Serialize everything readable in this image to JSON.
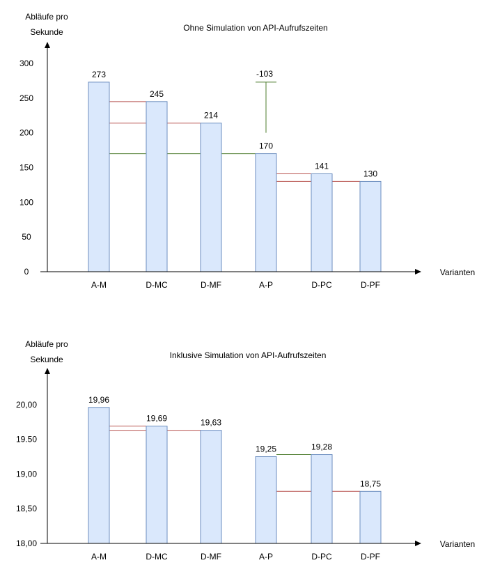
{
  "chart_data": [
    {
      "type": "bar",
      "title": "Ohne Simulation von API-Aufrufszeiten",
      "ylabel_line1": "Abläufe pro",
      "ylabel_line2": "Sekunde",
      "xlabel": "Varianten",
      "categories": [
        "A-M",
        "D-MC",
        "D-MF",
        "A-P",
        "D-PC",
        "D-PF"
      ],
      "values": [
        273,
        245,
        214,
        170,
        141,
        130
      ],
      "value_labels": [
        "273",
        "245",
        "214",
        "170",
        "141",
        "130"
      ],
      "ylim": [
        0,
        300
      ],
      "yticks": [
        0,
        50,
        100,
        150,
        200,
        250,
        300
      ],
      "ytick_labels": [
        "0",
        "50",
        "100",
        "150",
        "200",
        "250",
        "300"
      ],
      "bar_color": "#dae8fc",
      "bar_border": "#6c8ebf",
      "annotation_text": "-103",
      "annotation_color": "#4d7c2e",
      "connector_lines": [
        {
          "y": 245,
          "from": "A-M",
          "to": "D-MC",
          "color": "#b85450"
        },
        {
          "y": 214,
          "from": "A-M",
          "to": "D-MF",
          "color": "#b85450"
        },
        {
          "y": 170,
          "from": "A-M",
          "to": "A-P",
          "color": "#4d7c2e"
        },
        {
          "y": 141,
          "from": "A-P",
          "to": "D-PC",
          "color": "#b85450"
        },
        {
          "y": 130,
          "from": "A-P",
          "to": "D-PF",
          "color": "#b85450"
        }
      ],
      "diff_marker": {
        "category": "A-P",
        "from": 170,
        "to": 273,
        "color": "#4d7c2e"
      }
    },
    {
      "type": "bar",
      "title": "Inklusive Simulation von API-Aufrufszeiten",
      "ylabel_line1": "Abläufe pro",
      "ylabel_line2": "Sekunde",
      "xlabel": "Varianten",
      "categories": [
        "A-M",
        "D-MC",
        "D-MF",
        "A-P",
        "D-PC",
        "D-PF"
      ],
      "values": [
        19.96,
        19.69,
        19.63,
        19.25,
        19.28,
        18.75
      ],
      "value_labels": [
        "19,96",
        "19,69",
        "19,63",
        "19,25",
        "19,28",
        "18,75"
      ],
      "ylim": [
        18.0,
        20.5
      ],
      "yticks": [
        18.0,
        18.5,
        19.0,
        19.5,
        20.0
      ],
      "ytick_labels": [
        "18,00",
        "18,50",
        "19,00",
        "19.50",
        "20,00"
      ],
      "bar_color": "#dae8fc",
      "bar_border": "#6c8ebf",
      "connector_lines": [
        {
          "y": 19.69,
          "from": "A-M",
          "to": "D-MC",
          "color": "#b85450"
        },
        {
          "y": 19.63,
          "from": "A-M",
          "to": "D-MF",
          "color": "#b85450"
        },
        {
          "y": 19.28,
          "from": "A-P",
          "to": "D-PC",
          "color": "#4d7c2e"
        },
        {
          "y": 18.75,
          "from": "A-P",
          "to": "D-PF",
          "color": "#b85450"
        }
      ]
    }
  ]
}
